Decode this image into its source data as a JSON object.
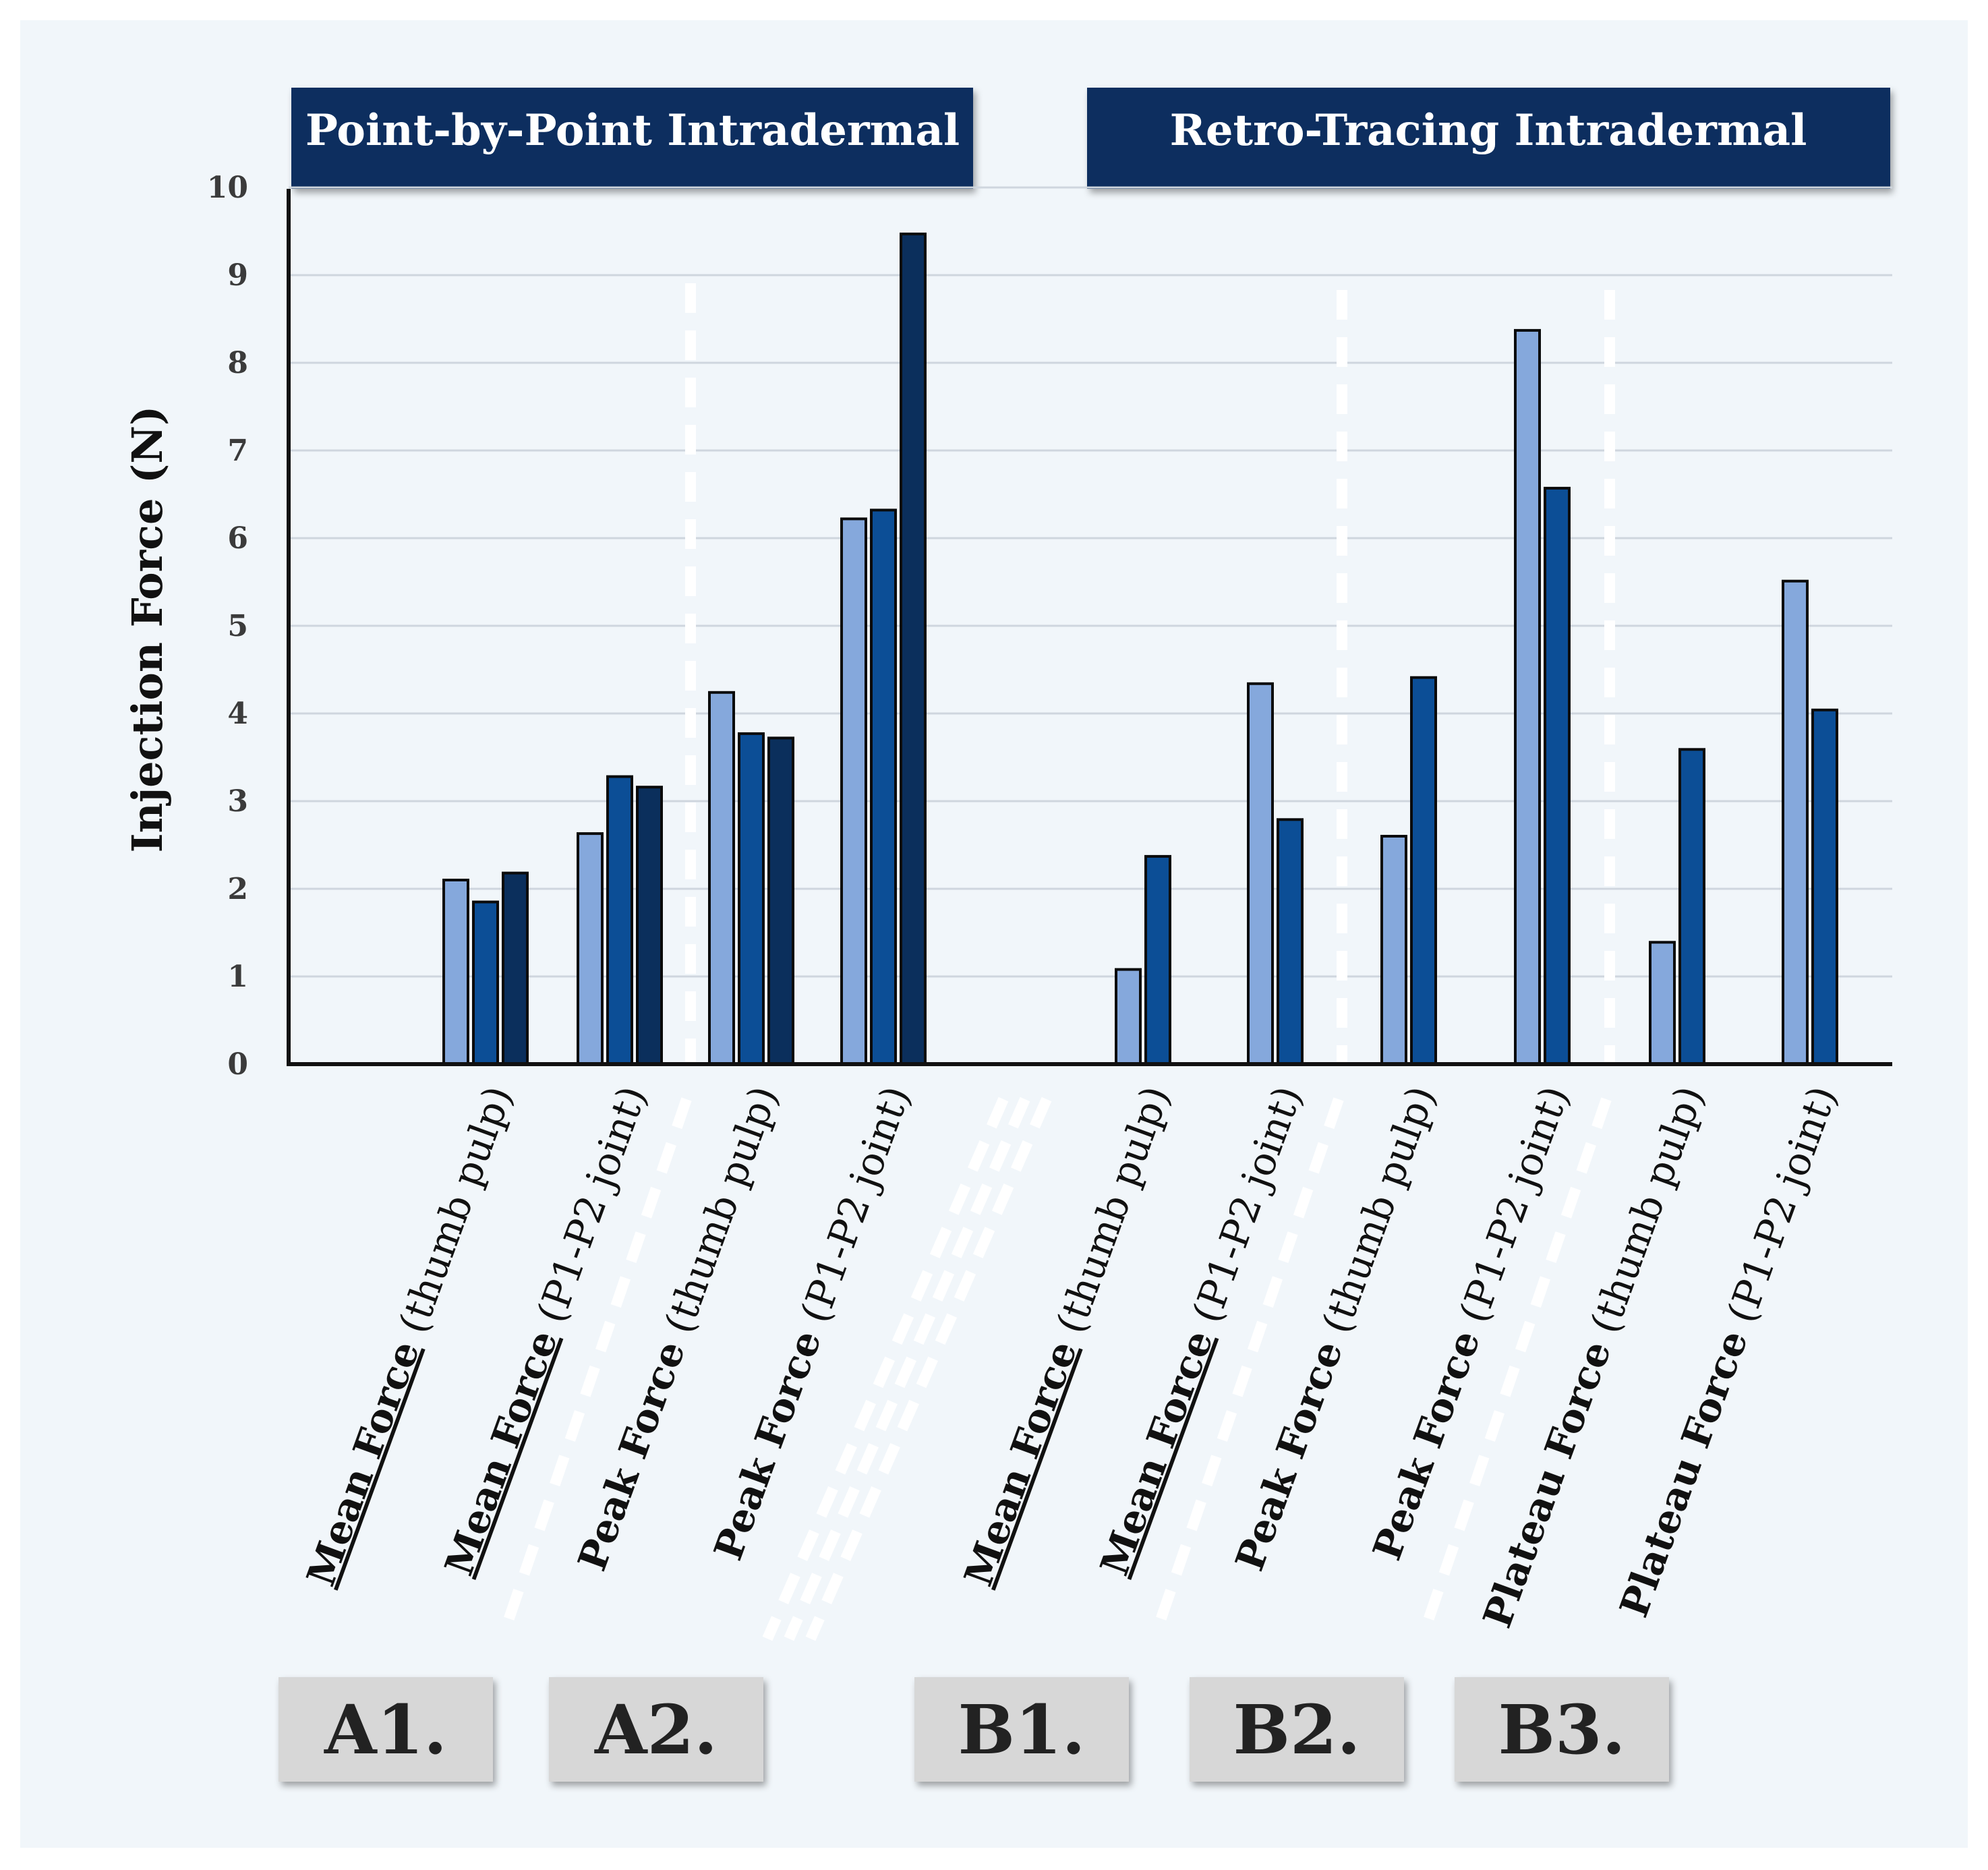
{
  "chart_data": {
    "type": "bar",
    "ylabel": "Injection Force (N)",
    "ylim": [
      0,
      10
    ],
    "yticks": [
      "0",
      "1",
      "2",
      "3",
      "4",
      "5",
      "6",
      "7",
      "8",
      "9",
      "10"
    ],
    "grid": true,
    "colors": [
      "#85a8dc",
      "#0c4e96",
      "#0b2f5c"
    ],
    "sections": [
      {
        "title": "Point-by-Point Intradermal"
      },
      {
        "title": "Retro-Tracing Intradermal"
      }
    ],
    "categories": [
      {
        "bold": "Mean Force",
        "normal": "(thumb pulp)",
        "underline": true,
        "values": [
          2.1,
          1.85,
          2.18
        ]
      },
      {
        "bold": "Mean Force",
        "normal": "(P1-P2 joint)",
        "underline": true,
        "values": [
          2.63,
          3.28,
          3.16
        ]
      },
      {
        "bold": "Peak Force",
        "normal": "(thumb pulp)",
        "underline": false,
        "values": [
          4.24,
          3.77,
          3.72
        ]
      },
      {
        "bold": "Peak Force",
        "normal": "(P1-P2 joint)",
        "underline": false,
        "values": [
          6.22,
          6.32,
          9.47
        ]
      },
      {
        "bold": "Mean Force",
        "normal": "(thumb pulp)",
        "underline": true,
        "values": [
          1.08,
          2.37
        ]
      },
      {
        "bold": "Mean Force",
        "normal": "(P1-P2 joint)",
        "underline": true,
        "values": [
          4.34,
          2.79
        ]
      },
      {
        "bold": "Peak Force",
        "normal": "(thumb pulp)",
        "underline": false,
        "values": [
          2.6,
          4.41
        ]
      },
      {
        "bold": "Peak Force",
        "normal": "(P1-P2 joint)",
        "underline": false,
        "values": [
          8.37,
          6.57
        ]
      },
      {
        "bold": "Plateau Force",
        "normal": "(thumb pulp)",
        "underline": false,
        "values": [
          1.39,
          3.59
        ]
      },
      {
        "bold": "Plateau Force",
        "normal": "(P1-P2 joint)",
        "underline": false,
        "values": [
          5.51,
          4.04
        ]
      }
    ],
    "panel_labels": [
      "A1.",
      "A2.",
      "B1.",
      "B2.",
      "B3."
    ]
  }
}
